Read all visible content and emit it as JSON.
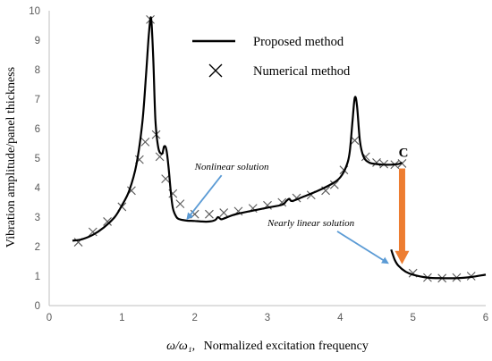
{
  "chart_data": {
    "type": "line",
    "xlabel_symbol": "ω/ω₁,",
    "xlabel": "Normalized excitation frequency",
    "ylabel": "Vibration amplitude/panel thickness",
    "xlim": [
      0,
      6
    ],
    "ylim": [
      0,
      10
    ],
    "xticks": [
      "0",
      "1",
      "2",
      "3",
      "4",
      "5",
      "6"
    ],
    "yticks": [
      "0",
      "1",
      "2",
      "3",
      "4",
      "5",
      "6",
      "7",
      "8",
      "9",
      "10"
    ],
    "grid": false,
    "legend": {
      "placement": "top-center",
      "entries": [
        {
          "label": "Proposed method",
          "marker": "line"
        },
        {
          "label": "Numerical method",
          "marker": "x"
        }
      ]
    },
    "series": [
      {
        "name": "Proposed method",
        "style": "line",
        "color": "#000000",
        "segments": [
          {
            "x": [
              0.32,
              0.45,
              0.6,
              0.75,
              0.9,
              1.0,
              1.1,
              1.2,
              1.28,
              1.33,
              1.37,
              1.4,
              1.43,
              1.46,
              1.5,
              1.55,
              1.58,
              1.61,
              1.64,
              1.67,
              1.7,
              1.75,
              1.8,
              1.9,
              2.0,
              2.1,
              2.2,
              2.28,
              2.32,
              2.36,
              2.4,
              2.5,
              2.6,
              2.8,
              3.0,
              3.2,
              3.26,
              3.3,
              3.34,
              3.5,
              3.7,
              3.9,
              4.0,
              4.08,
              4.13,
              4.17,
              4.2,
              4.23,
              4.27,
              4.32,
              4.4,
              4.5,
              4.6,
              4.7,
              4.8,
              4.85
            ],
            "y": [
              2.2,
              2.25,
              2.4,
              2.65,
              3.0,
              3.4,
              3.9,
              4.8,
              6.2,
              7.8,
              9.2,
              9.75,
              8.4,
              6.3,
              5.35,
              5.15,
              5.4,
              5.3,
              4.7,
              3.9,
              3.3,
              3.0,
              2.92,
              2.88,
              2.87,
              2.85,
              2.85,
              2.9,
              3.0,
              2.93,
              2.95,
              3.05,
              3.12,
              3.22,
              3.32,
              3.42,
              3.55,
              3.62,
              3.55,
              3.7,
              3.9,
              4.15,
              4.35,
              4.7,
              5.2,
              6.3,
              7.05,
              6.8,
              5.6,
              5.05,
              4.85,
              4.8,
              4.78,
              4.78,
              4.8,
              4.85
            ]
          },
          {
            "x": [
              4.7,
              4.75,
              4.8,
              4.9,
              5.0,
              5.2,
              5.4,
              5.6,
              5.8,
              6.0
            ],
            "y": [
              1.9,
              1.55,
              1.35,
              1.15,
              1.05,
              0.95,
              0.93,
              0.93,
              0.97,
              1.05
            ]
          }
        ]
      },
      {
        "name": "Numerical method",
        "style": "marker",
        "marker": "x",
        "color": "#595959",
        "x": [
          0.4,
          0.6,
          0.8,
          1.0,
          1.13,
          1.24,
          1.32,
          1.39,
          1.47,
          1.52,
          1.6,
          1.7,
          1.8,
          2.0,
          2.2,
          2.4,
          2.6,
          2.8,
          3.0,
          3.2,
          3.4,
          3.6,
          3.8,
          3.92,
          4.05,
          4.2,
          4.35,
          4.5,
          4.6,
          4.75,
          4.85,
          5.0,
          5.2,
          5.4,
          5.6,
          5.8
        ],
        "y": [
          2.15,
          2.5,
          2.85,
          3.35,
          3.9,
          4.95,
          5.55,
          9.7,
          5.8,
          5.05,
          4.3,
          3.8,
          3.45,
          3.1,
          3.1,
          3.15,
          3.2,
          3.3,
          3.4,
          3.5,
          3.65,
          3.75,
          3.9,
          4.1,
          4.6,
          5.6,
          5.05,
          4.85,
          4.8,
          4.78,
          4.82,
          1.1,
          0.95,
          0.93,
          0.95,
          1.0
        ]
      }
    ],
    "annotations": [
      {
        "id": "c_label",
        "text": "C",
        "x": 4.87,
        "y": 5.05
      },
      {
        "id": "nonlinear",
        "text": "Nonlinear solution",
        "x": 2.0,
        "y": 4.6,
        "arrow_to": [
          1.9,
          2.95
        ],
        "arrow_color": "#5b9bd5"
      },
      {
        "id": "nearly_linear",
        "text": "Nearly linear solution",
        "x": 3.0,
        "y": 2.7,
        "arrow_to": [
          4.65,
          1.45
        ],
        "arrow_color": "#5b9bd5"
      },
      {
        "id": "jump_arrow",
        "text": "",
        "from": [
          4.85,
          4.65
        ],
        "to": [
          4.85,
          1.4
        ],
        "arrow_color": "#ed7d31"
      }
    ]
  }
}
